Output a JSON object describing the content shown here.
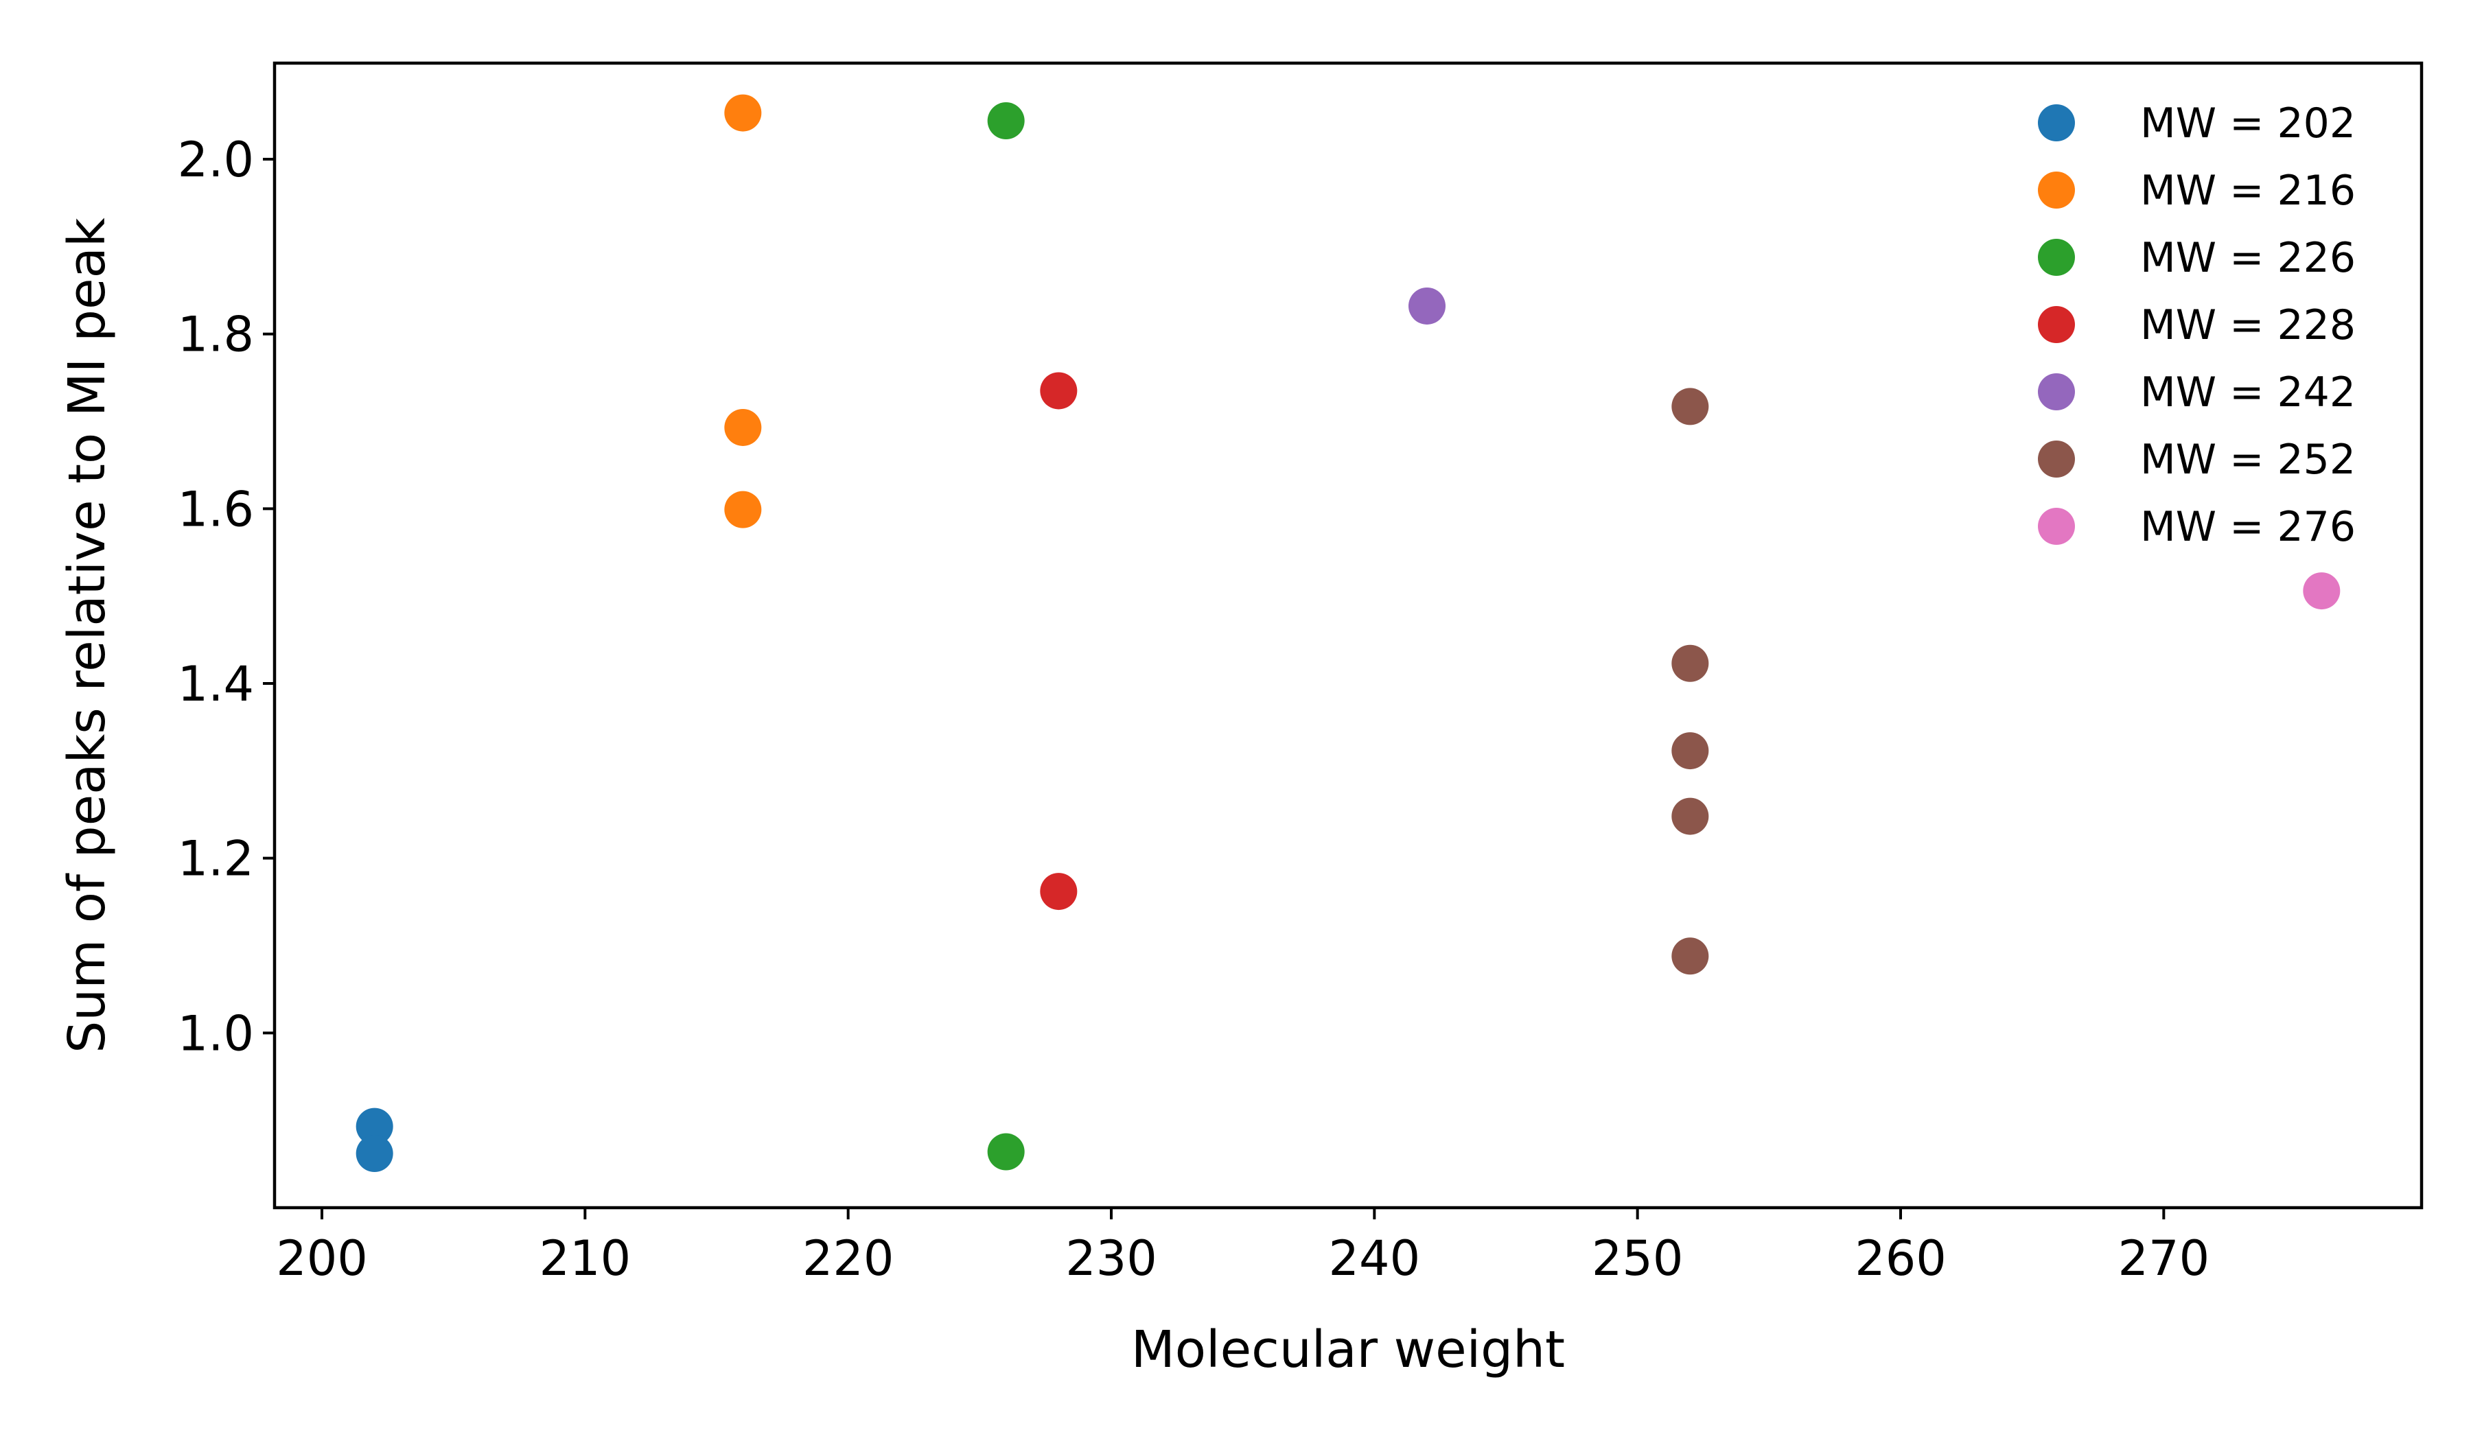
{
  "chart_data": {
    "type": "scatter",
    "title": "",
    "xlabel": "Molecular weight",
    "ylabel": "Sum of peaks relative to MI peak",
    "xlim": [
      198.2,
      279.8
    ],
    "ylim": [
      0.8,
      2.11
    ],
    "xticks": [
      200,
      210,
      220,
      230,
      240,
      250,
      260,
      270
    ],
    "yticks": [
      1.0,
      1.2,
      1.4,
      1.6,
      1.8,
      2.0
    ],
    "xtick_labels": [
      "200",
      "210",
      "220",
      "230",
      "240",
      "250",
      "260",
      "270"
    ],
    "ytick_labels": [
      "1.0",
      "1.2",
      "1.4",
      "1.6",
      "1.8",
      "2.0"
    ],
    "grid": false,
    "legend_position": "top-right",
    "series": [
      {
        "name": "MW = 202",
        "color": "#1f77b4",
        "points": [
          [
            202,
            0.893
          ],
          [
            202,
            0.862
          ]
        ]
      },
      {
        "name": "MW = 216",
        "color": "#ff7f0e",
        "points": [
          [
            216,
            2.053
          ],
          [
            216,
            1.693
          ],
          [
            216,
            1.599
          ]
        ]
      },
      {
        "name": "MW = 226",
        "color": "#2ca02c",
        "points": [
          [
            226,
            2.044
          ],
          [
            226,
            0.864
          ]
        ]
      },
      {
        "name": "MW = 228",
        "color": "#d62728",
        "points": [
          [
            228,
            1.735
          ],
          [
            228,
            1.162
          ]
        ]
      },
      {
        "name": "MW = 242",
        "color": "#9467bd",
        "points": [
          [
            242,
            1.832
          ]
        ]
      },
      {
        "name": "MW = 252",
        "color": "#8c564b",
        "points": [
          [
            252,
            1.717
          ],
          [
            252,
            1.423
          ],
          [
            252,
            1.323
          ],
          [
            252,
            1.248
          ],
          [
            252,
            1.088
          ]
        ]
      },
      {
        "name": "MW = 276",
        "color": "#e377c2",
        "points": [
          [
            276,
            1.506
          ]
        ]
      }
    ]
  }
}
